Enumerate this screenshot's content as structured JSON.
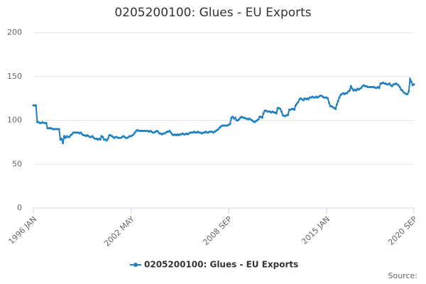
{
  "chart_data": {
    "type": "line",
    "title": "0205200100: Glues - EU Exports",
    "source": "Source:",
    "categories": [
      "1996 JAN",
      null,
      null,
      null,
      null,
      null,
      null,
      null,
      null,
      null,
      null,
      null,
      null,
      null,
      null,
      null,
      null,
      null,
      null,
      null,
      null,
      null,
      null,
      null,
      null,
      null,
      null,
      null,
      null,
      null,
      null,
      null,
      null,
      null,
      null,
      null,
      null,
      null,
      null,
      null,
      null,
      null,
      null,
      null,
      null,
      null,
      null,
      null,
      null,
      null,
      null,
      null,
      null,
      null,
      null,
      null,
      null,
      null,
      null,
      null,
      null,
      null,
      null,
      null,
      null,
      null,
      null,
      null,
      null,
      null,
      null,
      null,
      null,
      null,
      null,
      null,
      "2002 MAY",
      null,
      null,
      null,
      null,
      null,
      null,
      null,
      null,
      null,
      null,
      null,
      null,
      null,
      null,
      null,
      null,
      null,
      null,
      null,
      null,
      null,
      null,
      null,
      null,
      null,
      null,
      null,
      null,
      null,
      null,
      null,
      null,
      null,
      null,
      null,
      null,
      null,
      null,
      null,
      null,
      null,
      null,
      null,
      null,
      null,
      null,
      null,
      null,
      null,
      null,
      null,
      null,
      null,
      null,
      null,
      null,
      null,
      null,
      null,
      null,
      null,
      null,
      null,
      null,
      null,
      null,
      null,
      null,
      null,
      null,
      null,
      null,
      null,
      null,
      null,
      "2008 SEP",
      null,
      null,
      null,
      null,
      null,
      null,
      null,
      null,
      null,
      null,
      null,
      null,
      null,
      null,
      null,
      null,
      null,
      null,
      null,
      null,
      null,
      null,
      null,
      null,
      null,
      null,
      null,
      null,
      null,
      null,
      null,
      null,
      null,
      null,
      null,
      null,
      null,
      null,
      null,
      null,
      null,
      null,
      null,
      null,
      null,
      null,
      null,
      null,
      null,
      null,
      null,
      null,
      null,
      null,
      null,
      null,
      null,
      null,
      null,
      null,
      null,
      null,
      null,
      null,
      null,
      null,
      null,
      null,
      null,
      null,
      null,
      null,
      null,
      null,
      null,
      "2015 JAN",
      null,
      null,
      null,
      null,
      null,
      null,
      null,
      null,
      null,
      null,
      null,
      null,
      null,
      null,
      null,
      null,
      null,
      null,
      null,
      null,
      null,
      null,
      null,
      null,
      null,
      null,
      null,
      null,
      null,
      null,
      null,
      null,
      null,
      null,
      null,
      null,
      null,
      null,
      null,
      null,
      null,
      null,
      null,
      null,
      null,
      null,
      null,
      null,
      null,
      null,
      null,
      null,
      null,
      null,
      null,
      null,
      null,
      null,
      null,
      null,
      null,
      null,
      null,
      null,
      null,
      null,
      null,
      "2020 SEP"
    ],
    "series": [
      {
        "name": "0205200100: Glues - EU Exports",
        "color": "#1f7fbf",
        "values": [
          117,
          117,
          117,
          98,
          98,
          97,
          97,
          98,
          97,
          97,
          97,
          91,
          91,
          91,
          91,
          90,
          90,
          90,
          90,
          90,
          90,
          78,
          79,
          74,
          82,
          80,
          82,
          81,
          81,
          83,
          84,
          86,
          86,
          86,
          86,
          86,
          85,
          86,
          84,
          83,
          83,
          82,
          83,
          82,
          81,
          81,
          82,
          80,
          79,
          79,
          78,
          79,
          78,
          82,
          81,
          78,
          78,
          77,
          79,
          83,
          83,
          82,
          81,
          80,
          81,
          81,
          80,
          80,
          80,
          81,
          82,
          81,
          80,
          80,
          81,
          82,
          82,
          83,
          84,
          86,
          88,
          89,
          88,
          88,
          88,
          88,
          88,
          88,
          88,
          88,
          87,
          88,
          87,
          86,
          86,
          87,
          88,
          87,
          85,
          85,
          84,
          85,
          85,
          86,
          87,
          87,
          88,
          86,
          84,
          83,
          84,
          83,
          84,
          83,
          84,
          84,
          85,
          84,
          84,
          85,
          84,
          85,
          86,
          86,
          86,
          87,
          86,
          86,
          87,
          86,
          86,
          85,
          86,
          86,
          87,
          86,
          86,
          87,
          87,
          87,
          86,
          87,
          88,
          89,
          90,
          92,
          93,
          94,
          94,
          94,
          94,
          94,
          95,
          96,
          103,
          104,
          102,
          103,
          100,
          100,
          101,
          103,
          104,
          103,
          103,
          102,
          102,
          101,
          102,
          101,
          100,
          99,
          98,
          99,
          100,
          101,
          104,
          104,
          103,
          108,
          111,
          111,
          110,
          110,
          110,
          109,
          110,
          109,
          109,
          108,
          114,
          114,
          113,
          110,
          106,
          105,
          105,
          106,
          106,
          112,
          112,
          113,
          113,
          112,
          117,
          119,
          121,
          124,
          125,
          124,
          123,
          125,
          124,
          125,
          124,
          126,
          126,
          127,
          126,
          126,
          127,
          126,
          127,
          128,
          128,
          127,
          126,
          126,
          126,
          125,
          120,
          116,
          116,
          115,
          114,
          113,
          118,
          122,
          126,
          129,
          130,
          131,
          130,
          131,
          131,
          133,
          134,
          139,
          136,
          134,
          135,
          134,
          136,
          135,
          136,
          137,
          139,
          140,
          139,
          139,
          138,
          138,
          138,
          138,
          138,
          138,
          137,
          137,
          138,
          137,
          142,
          142,
          143,
          142,
          142,
          141,
          141,
          142,
          140,
          139,
          141,
          141,
          142,
          141,
          140,
          138,
          135,
          134,
          132,
          131,
          130,
          130,
          133,
          147,
          144,
          140,
          141
        ]
      }
    ],
    "ylim": [
      0,
      200
    ],
    "yticks": [
      0,
      50,
      100,
      150,
      200
    ],
    "grid": true
  }
}
